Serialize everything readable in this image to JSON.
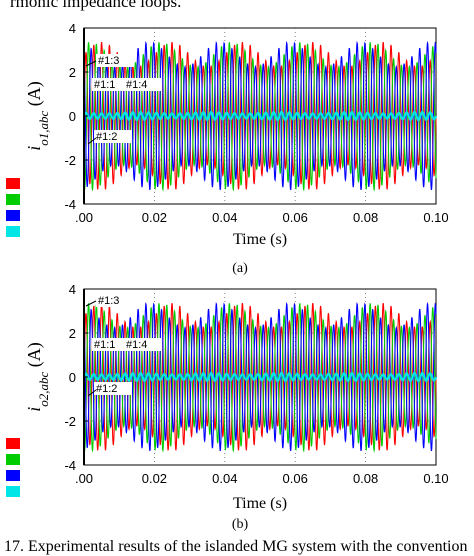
{
  "page": {
    "header_fragment": "rmonic impedance loops.",
    "caption_fragment": "17. Experimental results of the islanded MG system with the convention"
  },
  "colors": {
    "a": "#ff0000",
    "b": "#00cc00",
    "c": "#0000ff",
    "d": "#00e5e5"
  },
  "legend_swatches": [
    "#ff0000",
    "#00cc00",
    "#0000ff",
    "#00e5e5"
  ],
  "chart_data": [
    {
      "type": "line",
      "panel_label": "(a)",
      "xlabel": "Time (s)",
      "ylabel_main": "i",
      "ylabel_sub": "o1,abc",
      "ylabel_unit": "(A)",
      "xlim": [
        0,
        0.1
      ],
      "ylim": [
        -4,
        4
      ],
      "x_ticks": [
        ".00",
        "0.02",
        "0.04",
        "0.06",
        "0.08",
        "0.10"
      ],
      "y_ticks": [
        "4",
        "2",
        "0",
        "-2",
        "-4"
      ],
      "grid": "dotted",
      "annotations": [
        "#1:3",
        "#1:1",
        "#1:4",
        "#1:2"
      ],
      "series": [
        {
          "amplitude": 2.8,
          "frequency_hz": 450,
          "phase_deg": 0,
          "color": "#ff0000"
        },
        {
          "amplitude": 2.8,
          "frequency_hz": 450,
          "phase_deg": 240,
          "color": "#00cc00"
        },
        {
          "amplitude": 2.8,
          "frequency_hz": 450,
          "phase_deg": 120,
          "color": "#0000ff"
        },
        {
          "amplitude": 0.15,
          "frequency_hz": 450,
          "phase_deg": 0,
          "color": "#00e5e5"
        }
      ]
    },
    {
      "type": "line",
      "panel_label": "(b)",
      "xlabel": "Time (s)",
      "ylabel_main": "i",
      "ylabel_sub": "o2,abc",
      "ylabel_unit": "(A)",
      "xlim": [
        0,
        0.1
      ],
      "ylim": [
        -4,
        4
      ],
      "x_ticks": [
        ".00",
        "0.02",
        "0.04",
        "0.06",
        "0.08",
        "0.10"
      ],
      "y_ticks": [
        "4",
        "2",
        "0",
        "-2",
        "-4"
      ],
      "grid": "dotted",
      "annotations": [
        "#1:3",
        "#1:1",
        "#1:4",
        "#1:2"
      ],
      "series": [
        {
          "amplitude": 2.8,
          "frequency_hz": 450,
          "phase_deg": 0,
          "color": "#ff0000"
        },
        {
          "amplitude": 2.8,
          "frequency_hz": 450,
          "phase_deg": 240,
          "color": "#00cc00"
        },
        {
          "amplitude": 2.8,
          "frequency_hz": 450,
          "phase_deg": 120,
          "color": "#0000ff"
        },
        {
          "amplitude": 0.15,
          "frequency_hz": 450,
          "phase_deg": 0,
          "color": "#00e5e5"
        }
      ]
    }
  ]
}
